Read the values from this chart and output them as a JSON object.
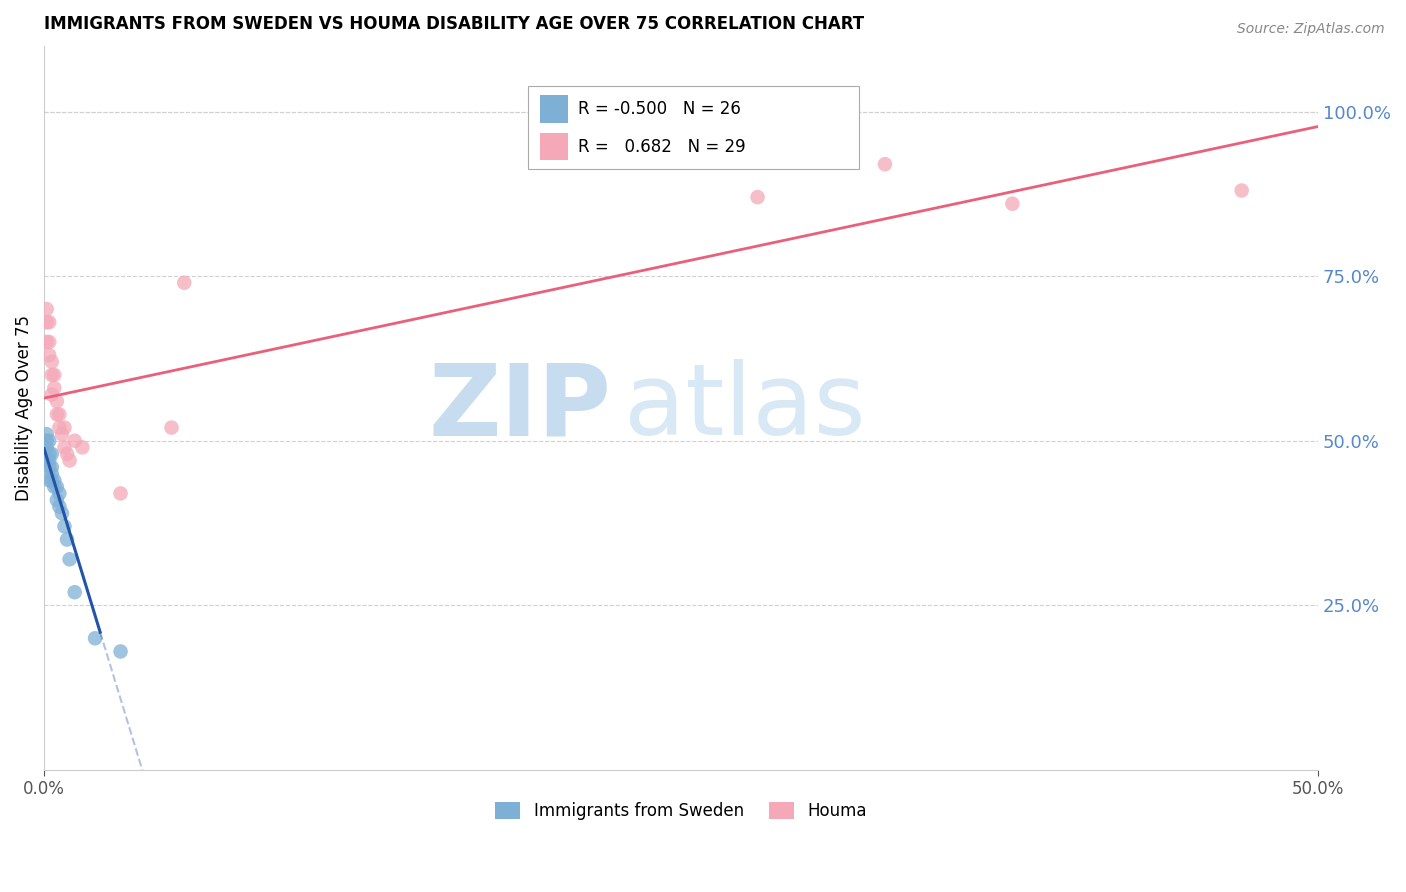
{
  "title": "IMMIGRANTS FROM SWEDEN VS HOUMA DISABILITY AGE OVER 75 CORRELATION CHART",
  "source": "Source: ZipAtlas.com",
  "ylabel": "Disability Age Over 75",
  "legend_blue_r": "-0.500",
  "legend_blue_n": "26",
  "legend_pink_r": "0.682",
  "legend_pink_n": "29",
  "xlim": [
    0.0,
    0.5
  ],
  "ylim": [
    0.0,
    1.1
  ],
  "yticks": [
    0.25,
    0.5,
    0.75,
    1.0
  ],
  "xticks": [
    0.0,
    0.5
  ],
  "blue_scatter_x": [
    0.001,
    0.001,
    0.001,
    0.001,
    0.002,
    0.002,
    0.002,
    0.002,
    0.002,
    0.003,
    0.003,
    0.003,
    0.003,
    0.004,
    0.004,
    0.005,
    0.005,
    0.006,
    0.006,
    0.007,
    0.008,
    0.009,
    0.01,
    0.012,
    0.02,
    0.03
  ],
  "blue_scatter_y": [
    0.5,
    0.51,
    0.49,
    0.47,
    0.47,
    0.48,
    0.5,
    0.44,
    0.46,
    0.45,
    0.44,
    0.46,
    0.48,
    0.43,
    0.44,
    0.41,
    0.43,
    0.4,
    0.42,
    0.39,
    0.37,
    0.35,
    0.32,
    0.27,
    0.2,
    0.18
  ],
  "pink_scatter_x": [
    0.001,
    0.001,
    0.001,
    0.002,
    0.002,
    0.002,
    0.003,
    0.003,
    0.003,
    0.004,
    0.004,
    0.005,
    0.005,
    0.006,
    0.006,
    0.007,
    0.008,
    0.008,
    0.009,
    0.01,
    0.012,
    0.015,
    0.03,
    0.05,
    0.055,
    0.28,
    0.33,
    0.38,
    0.47
  ],
  "pink_scatter_y": [
    0.7,
    0.68,
    0.65,
    0.63,
    0.65,
    0.68,
    0.6,
    0.57,
    0.62,
    0.58,
    0.6,
    0.54,
    0.56,
    0.52,
    0.54,
    0.51,
    0.49,
    0.52,
    0.48,
    0.47,
    0.5,
    0.49,
    0.42,
    0.52,
    0.74,
    0.87,
    0.92,
    0.86,
    0.88
  ],
  "blue_color": "#7EB0D5",
  "pink_color": "#F4A8B8",
  "blue_line_color": "#2255AA",
  "pink_line_color": "#E8607A",
  "bg_color": "#FFFFFF",
  "grid_color": "#D0D0D0",
  "right_axis_color": "#5588CC",
  "watermark_zip_color": "#C8DCF0",
  "watermark_atlas_color": "#D8E8F5"
}
